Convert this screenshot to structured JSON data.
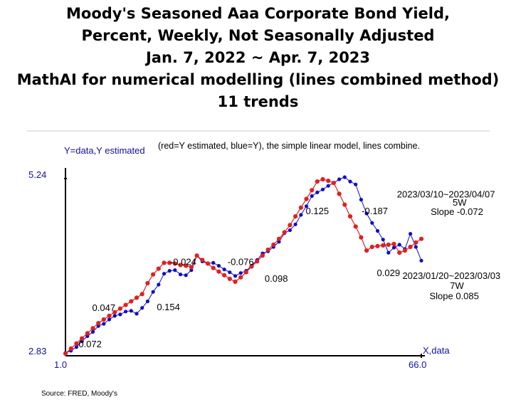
{
  "title_lines": [
    "Moody's Seasoned Aaa Corporate Bond Yield,",
    "Percent, Weekly, Not Seasonally Adjusted",
    "Jan. 7, 2022 ~ Apr. 7, 2023",
    "MathAI for numerical modelling (lines combined method)",
    "11 trends"
  ],
  "source": "Source: FRED, Moody's",
  "colors": {
    "estimated": "#e02020",
    "data": "#1010c0",
    "axis": "#000000",
    "panel_text": "#1010a0"
  },
  "chart_data": {
    "type": "scatter",
    "header_note": "(red=Y estimated, blue=Y), the simple linear model, lines combine.",
    "ylabel": "Y=data,Y estimated",
    "xlabel": "X,data",
    "x_tick_labels": [
      "1.0",
      "66.0"
    ],
    "y_tick_labels": [
      "2.83",
      "5.24"
    ],
    "xlim": [
      1,
      66
    ],
    "ylim": [
      2.83,
      5.24
    ],
    "grid": false,
    "series": [
      {
        "name": "Y",
        "color": "#1010c0",
        "x": [
          1,
          2,
          3,
          4,
          5,
          6,
          7,
          8,
          9,
          10,
          11,
          12,
          13,
          14,
          15,
          16,
          17,
          18,
          19,
          20,
          21,
          22,
          23,
          24,
          25,
          26,
          27,
          28,
          29,
          30,
          31,
          32,
          33,
          34,
          35,
          36,
          37,
          38,
          39,
          40,
          41,
          42,
          43,
          44,
          45,
          46,
          47,
          48,
          49,
          50,
          51,
          52,
          53,
          54,
          55,
          56,
          57,
          58,
          59,
          60,
          61,
          62,
          63,
          64,
          65,
          66
        ],
        "values": [
          2.84,
          2.87,
          2.92,
          3.0,
          3.07,
          3.13,
          3.21,
          3.24,
          3.3,
          3.35,
          3.37,
          3.41,
          3.42,
          3.38,
          3.46,
          3.55,
          3.68,
          3.78,
          3.93,
          3.97,
          3.98,
          3.92,
          3.91,
          3.98,
          4.18,
          4.1,
          4.07,
          4.08,
          4.04,
          3.99,
          3.95,
          3.9,
          3.94,
          3.97,
          4.04,
          4.12,
          4.21,
          4.24,
          4.3,
          4.37,
          4.49,
          4.53,
          4.61,
          4.74,
          4.86,
          5.0,
          5.05,
          5.09,
          5.14,
          5.18,
          5.23,
          5.26,
          5.2,
          5.16,
          4.95,
          4.76,
          4.63,
          4.52,
          4.4,
          4.22,
          4.29,
          4.33,
          4.27,
          4.48,
          4.3,
          4.11
        ]
      },
      {
        "name": "Y estimated",
        "color": "#e02020",
        "x": [
          1,
          2,
          3,
          4,
          5,
          6,
          7,
          8,
          9,
          10,
          11,
          12,
          13,
          14,
          15,
          16,
          17,
          18,
          19,
          20,
          21,
          22,
          23,
          24,
          25,
          26,
          27,
          28,
          29,
          30,
          31,
          32,
          33,
          34,
          35,
          36,
          37,
          38,
          39,
          40,
          41,
          42,
          43,
          44,
          45,
          46,
          47,
          48,
          49,
          50,
          51,
          52,
          53,
          54,
          55,
          56,
          57,
          58,
          59,
          60,
          61,
          62,
          63,
          64,
          65,
          66
        ],
        "values": [
          2.83,
          2.9,
          2.97,
          3.04,
          3.11,
          3.18,
          3.25,
          3.3,
          3.35,
          3.4,
          3.45,
          3.5,
          3.55,
          3.6,
          3.65,
          3.8,
          3.92,
          4.0,
          4.08,
          4.08,
          4.07,
          4.05,
          4.04,
          4.02,
          4.18,
          4.12,
          4.07,
          4.01,
          3.96,
          3.91,
          3.86,
          3.82,
          3.88,
          3.95,
          4.03,
          4.1,
          4.18,
          4.26,
          4.33,
          4.41,
          4.5,
          4.6,
          4.72,
          4.84,
          4.96,
          5.08,
          5.2,
          5.23,
          5.21,
          5.18,
          5.03,
          4.88,
          4.72,
          4.58,
          4.43,
          4.25,
          4.3,
          4.31,
          4.32,
          4.33,
          4.34,
          4.22,
          4.25,
          4.3,
          4.36,
          4.41
        ]
      }
    ],
    "annotations": [
      {
        "text": "0.072",
        "x": 5.5,
        "y": 2.92
      },
      {
        "text": "0.047",
        "x": 8.0,
        "y": 3.42
      },
      {
        "text": "0.154",
        "x": 19.8,
        "y": 3.43
      },
      {
        "text": "-0.024",
        "x": 22.5,
        "y": 4.05
      },
      {
        "text": "-0.076",
        "x": 33.0,
        "y": 4.05
      },
      {
        "text": "0.098",
        "x": 39.5,
        "y": 3.82
      },
      {
        "text": "0.125",
        "x": 47.0,
        "y": 4.75
      },
      {
        "text": "-0.187",
        "x": 57.5,
        "y": 4.75
      },
      {
        "text": "0.029",
        "x": 60.0,
        "y": 3.9
      },
      {
        "text": "2023/03/10~2023/04/07",
        "x": 70.5,
        "y": 4.98
      },
      {
        "text": "5W",
        "x": 73.0,
        "y": 4.87
      },
      {
        "text": "Slope -0.072",
        "x": 72.5,
        "y": 4.74
      },
      {
        "text": "2023/01/20~2023/03/03",
        "x": 71.5,
        "y": 3.86
      },
      {
        "text": "7W",
        "x": 72.5,
        "y": 3.72
      },
      {
        "text": "Slope 0.085",
        "x": 72.0,
        "y": 3.58
      }
    ]
  }
}
